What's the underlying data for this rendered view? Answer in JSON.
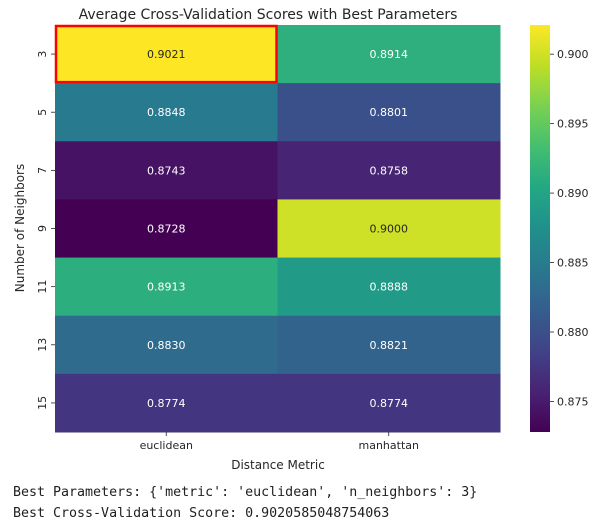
{
  "chart_data": {
    "type": "heatmap",
    "title": "Average Cross-Validation Scores with Best Parameters",
    "xlabel": "Distance Metric",
    "ylabel": "Number of Neighbors",
    "x_categories": [
      "euclidean",
      "manhattan"
    ],
    "y_categories": [
      "3",
      "5",
      "7",
      "9",
      "11",
      "13",
      "15"
    ],
    "values": [
      [
        0.9021,
        0.8914
      ],
      [
        0.8848,
        0.8801
      ],
      [
        0.8743,
        0.8758
      ],
      [
        0.8728,
        0.9
      ],
      [
        0.8913,
        0.8888
      ],
      [
        0.883,
        0.8821
      ],
      [
        0.8774,
        0.8774
      ]
    ],
    "value_labels": [
      [
        "0.9021",
        "0.8914"
      ],
      [
        "0.8848",
        "0.8801"
      ],
      [
        "0.8743",
        "0.8758"
      ],
      [
        "0.8728",
        "0.9000"
      ],
      [
        "0.8913",
        "0.8888"
      ],
      [
        "0.8830",
        "0.8821"
      ],
      [
        "0.8774",
        "0.8774"
      ]
    ],
    "colormap": "viridis",
    "color_range": [
      0.8728,
      0.9021
    ],
    "colorbar_ticks": [
      0.9,
      0.895,
      0.89,
      0.885,
      0.88,
      0.875
    ],
    "colorbar_tick_labels": [
      "0.900",
      "0.895",
      "0.890",
      "0.885",
      "0.880",
      "0.875"
    ],
    "highlight": {
      "row": 0,
      "col": 0,
      "color": "#ff0000"
    }
  },
  "output": {
    "best_params": "Best Parameters: {'metric': 'euclidean', 'n_neighbors': 3}",
    "best_score": "Best Cross-Validation Score: 0.9020585048754063"
  }
}
